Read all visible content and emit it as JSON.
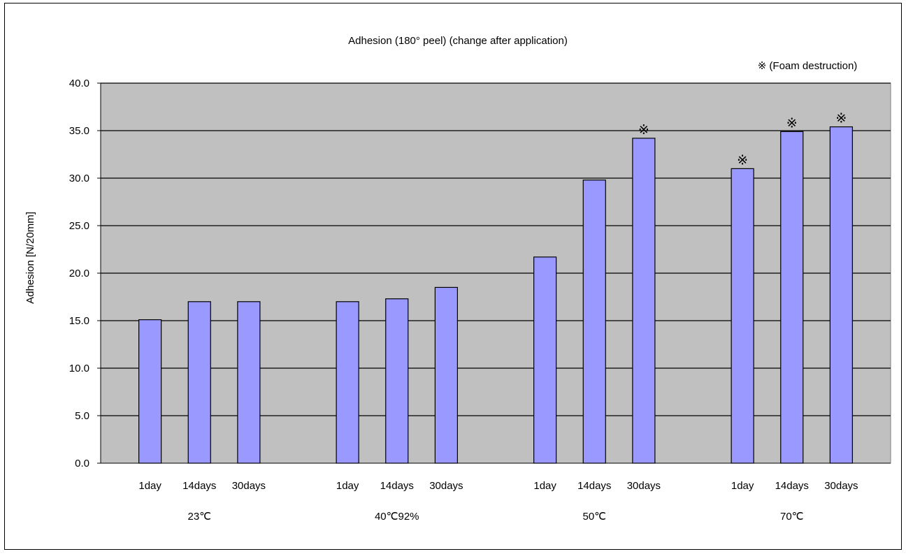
{
  "chart_data": {
    "type": "bar",
    "title": "Adhesion (180° peel) (change after application)",
    "note": "※ (Foam destruction)",
    "ylabel": "Adhesion [N/20mm]",
    "xlabel": "",
    "ylim": [
      0,
      40
    ],
    "yticks": [
      "0.0",
      "5.0",
      "10.0",
      "15.0",
      "20.0",
      "25.0",
      "30.0",
      "35.0",
      "40.0"
    ],
    "grid": true,
    "groups": [
      {
        "label": "23℃",
        "bars": [
          {
            "label": "1day",
            "value": 15.1,
            "mark": ""
          },
          {
            "label": "14days",
            "value": 17.0,
            "mark": ""
          },
          {
            "label": "30days",
            "value": 17.0,
            "mark": ""
          }
        ]
      },
      {
        "label": "40℃92%",
        "bars": [
          {
            "label": "1day",
            "value": 17.0,
            "mark": ""
          },
          {
            "label": "14days",
            "value": 17.3,
            "mark": ""
          },
          {
            "label": "30days",
            "value": 18.5,
            "mark": ""
          }
        ]
      },
      {
        "label": "50℃",
        "bars": [
          {
            "label": "1day",
            "value": 21.7,
            "mark": ""
          },
          {
            "label": "14days",
            "value": 29.8,
            "mark": ""
          },
          {
            "label": "30days",
            "value": 34.2,
            "mark": "※"
          }
        ]
      },
      {
        "label": "70℃",
        "bars": [
          {
            "label": "1day",
            "value": 31.0,
            "mark": "※"
          },
          {
            "label": "14days",
            "value": 34.9,
            "mark": "※"
          },
          {
            "label": "30days",
            "value": 35.4,
            "mark": "※"
          }
        ]
      }
    ],
    "colors": {
      "bar": "#9999ff",
      "plot_bg": "#c0c0c0",
      "grid": "#000000"
    }
  }
}
